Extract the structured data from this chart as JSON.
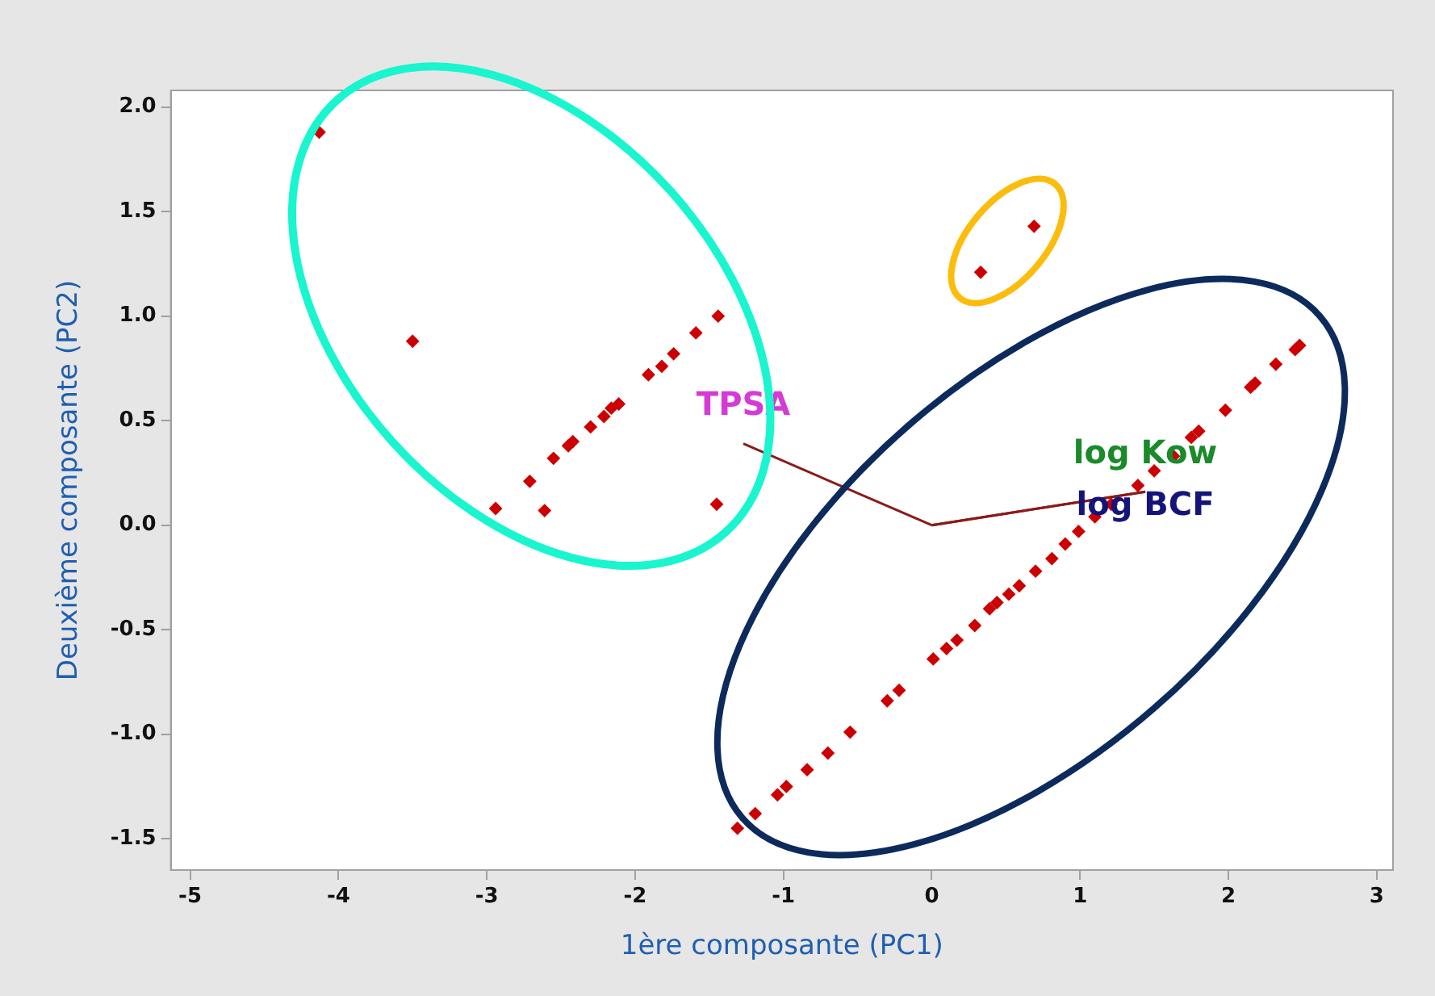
{
  "chart_data": {
    "type": "scatter",
    "xlabel": "1ère composante (PC1)",
    "ylabel": "Deuxième composante (PC2)",
    "xlim": [
      -5.13,
      3.11
    ],
    "ylim": [
      -1.65,
      2.08
    ],
    "xticks": [
      -5,
      -4,
      -3,
      -2,
      -1,
      0,
      1,
      2,
      3
    ],
    "yticks": [
      {
        "value": -1.5,
        "label": "-1.5"
      },
      {
        "value": -1,
        "label": "-1.0"
      },
      {
        "value": -0.5,
        "label": "-0.5"
      },
      {
        "value": 0,
        "label": "0.0"
      },
      {
        "value": 0.5,
        "label": "0.5"
      },
      {
        "value": 1,
        "label": "1.0"
      },
      {
        "value": 1.5,
        "label": "1.5"
      },
      {
        "value": 2,
        "label": "2.0"
      }
    ],
    "grid": false,
    "legend": false,
    "marker": "diamond",
    "series": [
      {
        "color": "#cc0000",
        "x": [
          -4.13,
          -3.5,
          -1.44,
          -1.59,
          -1.74,
          -1.82,
          -1.91,
          -2.11,
          -2.16,
          -2.21,
          -2.3,
          -2.42,
          -2.45,
          -2.55,
          -2.71,
          -2.94,
          -2.61,
          -1.45,
          0.33,
          0.69,
          2.48,
          2.45,
          2.32,
          2.18,
          2.15,
          1.98,
          1.8,
          1.75,
          1.63,
          1.5,
          1.39,
          1.21,
          1.1,
          0.99,
          0.9,
          0.81,
          0.7,
          0.59,
          0.52,
          0.44,
          0.39,
          0.29,
          0.17,
          0.1,
          0.01,
          -0.22,
          -0.3,
          -0.55,
          -0.7,
          -0.84,
          -0.98,
          -1.04,
          -1.19,
          -1.31
        ],
        "values": [
          1.88,
          0.88,
          1.0,
          0.92,
          0.82,
          0.76,
          0.72,
          0.58,
          0.56,
          0.52,
          0.47,
          0.4,
          0.38,
          0.32,
          0.21,
          0.08,
          0.07,
          0.1,
          1.21,
          1.43,
          0.86,
          0.84,
          0.77,
          0.68,
          0.66,
          0.55,
          0.45,
          0.42,
          0.33,
          0.26,
          0.19,
          0.1,
          0.04,
          -0.03,
          -0.09,
          -0.16,
          -0.22,
          -0.29,
          -0.33,
          -0.37,
          -0.4,
          -0.48,
          -0.55,
          -0.59,
          -0.64,
          -0.79,
          -0.84,
          -0.99,
          -1.09,
          -1.17,
          -1.25,
          -1.29,
          -1.38,
          -1.45
        ]
      },
      {
        "type": "line",
        "name": "TPSA",
        "color": "#8b1a1a",
        "marker": "none",
        "x": [
          0,
          -1.27
        ],
        "values": [
          0,
          0.39
        ]
      },
      {
        "type": "line",
        "name": "log Kow",
        "color": "#8b1a1a",
        "marker": "none",
        "x": [
          0,
          1.44
        ],
        "values": [
          0,
          0.16
        ]
      },
      {
        "type": "line",
        "name": "log BCF",
        "color": "#8b1a1a",
        "marker": "none",
        "x": [
          0,
          1.44
        ],
        "values": [
          0,
          0.16
        ]
      }
    ]
  }
}
